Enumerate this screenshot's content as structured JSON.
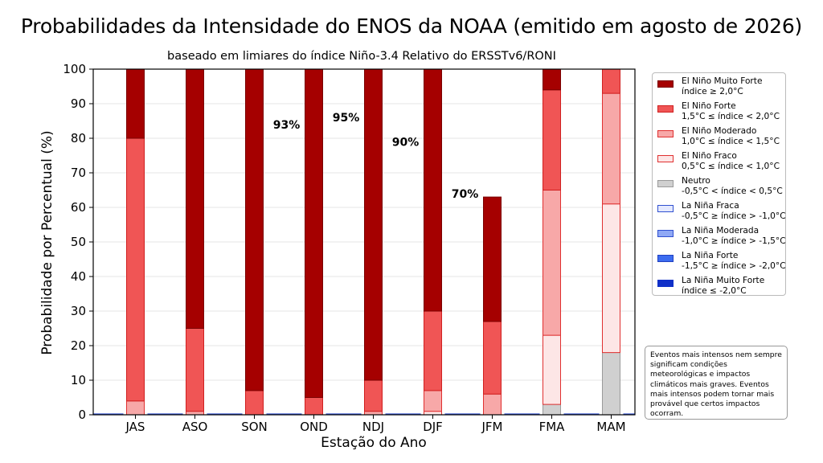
{
  "chart_data": {
    "type": "bar",
    "stacked": true,
    "title": "Probabilidades da Intensidade do ENOS da NOAA (emitido em agosto de 2026)",
    "subtitle": "baseado em limiares do índice Niño-3.4 Relativo do ERSSTv6/RONI",
    "xlabel": "Estação do Ano",
    "ylabel": "Probabilidade por Percentual (%)",
    "ylim": [
      0,
      100
    ],
    "yticks": [
      "0",
      "10",
      "20",
      "30",
      "40",
      "50",
      "60",
      "70",
      "80",
      "90",
      "100"
    ],
    "grid": true,
    "legend_position": "right",
    "categories": [
      "JAS",
      "ASO",
      "SON",
      "OND",
      "NDJ",
      "DJF",
      "JFM",
      "FMA",
      "MAM"
    ],
    "series": [
      {
        "name": "La Niña Muito Forte",
        "range": "índice ≤ -2,0°C",
        "color": "#1030c8",
        "edge": "#1030c8",
        "values": [
          0,
          0,
          0,
          0,
          0,
          0,
          0,
          0,
          0
        ]
      },
      {
        "name": "La Niña Forte",
        "range": "-1,5°C ≥ índice > -2,0°C",
        "color": "#3c6cf0",
        "edge": "#2040c0",
        "values": [
          0,
          0,
          0,
          0,
          0,
          0,
          0,
          0,
          0
        ]
      },
      {
        "name": "La Niña Moderada",
        "range": "-1,0°C ≥ índice > -1,5°C",
        "color": "#8fa8f5",
        "edge": "#3050d0",
        "values": [
          0,
          0,
          0,
          0,
          0,
          0,
          0,
          0,
          0
        ]
      },
      {
        "name": "La Niña Fraca",
        "range": "-0,5°C ≥ índice > -1,0°C",
        "color": "#e4e9ff",
        "edge": "#3050d0",
        "values": [
          0,
          0,
          0,
          0,
          0,
          0,
          0,
          0,
          0
        ]
      },
      {
        "name": "Neutro",
        "range": "-0,5°C < índice < 0,5°C",
        "color": "#d0d0d0",
        "edge": "#9a9a9a",
        "values": [
          0,
          0,
          0,
          0,
          0,
          0,
          0,
          3,
          18
        ]
      },
      {
        "name": "El Niño Fraco",
        "range": "0,5°C ≤ índice < 1,0°C",
        "color": "#fde6e6",
        "edge": "#e03030",
        "values": [
          0,
          0,
          0,
          0,
          0,
          1,
          0,
          20,
          43
        ]
      },
      {
        "name": "El Niño Moderado",
        "range": "1,0°C ≤ índice < 1,5°C",
        "color": "#f7a8a8",
        "edge": "#e03030",
        "values": [
          4,
          1,
          0,
          0,
          1,
          6,
          6,
          42,
          32
        ]
      },
      {
        "name": "El Niño Forte",
        "range": "1,5°C ≤ índice < 2,0°C",
        "color": "#f05555",
        "edge": "#d02020",
        "values": [
          76,
          24,
          7,
          5,
          9,
          23,
          21,
          29,
          7
        ]
      },
      {
        "name": "El Niño Muito Forte",
        "range": "índice ≥ 2,0°C",
        "color": "#a50000",
        "edge": "#7a0000",
        "values": [
          20,
          75,
          93,
          95,
          90,
          70,
          36,
          6,
          0
        ]
      }
    ],
    "annotations": [
      {
        "category": "SON",
        "text": "93%",
        "y": 84
      },
      {
        "category": "OND",
        "text": "95%",
        "y": 86
      },
      {
        "category": "NDJ",
        "text": "90%",
        "y": 79
      },
      {
        "category": "DJF",
        "text": "70%",
        "y": 64
      }
    ]
  },
  "legend_order": [
    8,
    7,
    6,
    5,
    4,
    3,
    2,
    1,
    0
  ],
  "note": "Eventos mais intensos nem sempre significam condições meteorológicas e impactos climáticos mais graves. Eventos mais intensos podem tornar mais provável que certos impactos ocorram."
}
